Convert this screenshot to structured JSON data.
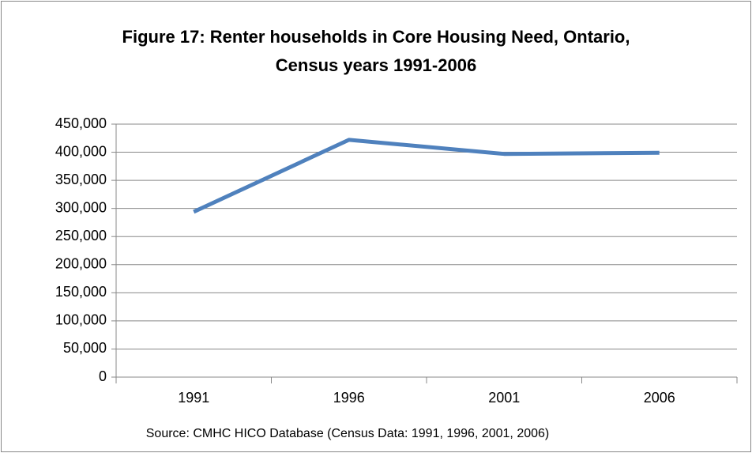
{
  "chart_data": {
    "type": "line",
    "title": [
      "Figure 17: Renter households in Core Housing Need, Ontario,",
      "Census years 1991-2006"
    ],
    "note": "Source: CMHC HICO Database (Census Data: 1991, 1996, 2001, 2006)",
    "categories": [
      "1991",
      "1996",
      "2001",
      "2006"
    ],
    "series": [
      {
        "name": "Renter households in Core Housing Need",
        "color": "#4f81bd",
        "values": [
          294000,
          422000,
          397000,
          399000
        ]
      }
    ],
    "ylim": [
      0,
      450000
    ],
    "yticks": [
      0,
      {
        "value": 50000,
        "label": "50,000"
      },
      {
        "value": 100000,
        "label": "100,000"
      },
      {
        "value": 150000,
        "label": "150,000"
      },
      {
        "value": 200000,
        "label": "200,000"
      },
      {
        "value": 250000,
        "label": "250,000"
      },
      {
        "value": 300000,
        "label": "300,000"
      },
      {
        "value": 350000,
        "label": "350,000"
      },
      {
        "value": 400000,
        "label": "400,000"
      },
      {
        "value": 450000,
        "label": "450,000"
      }
    ],
    "grid": true,
    "legend": false
  }
}
